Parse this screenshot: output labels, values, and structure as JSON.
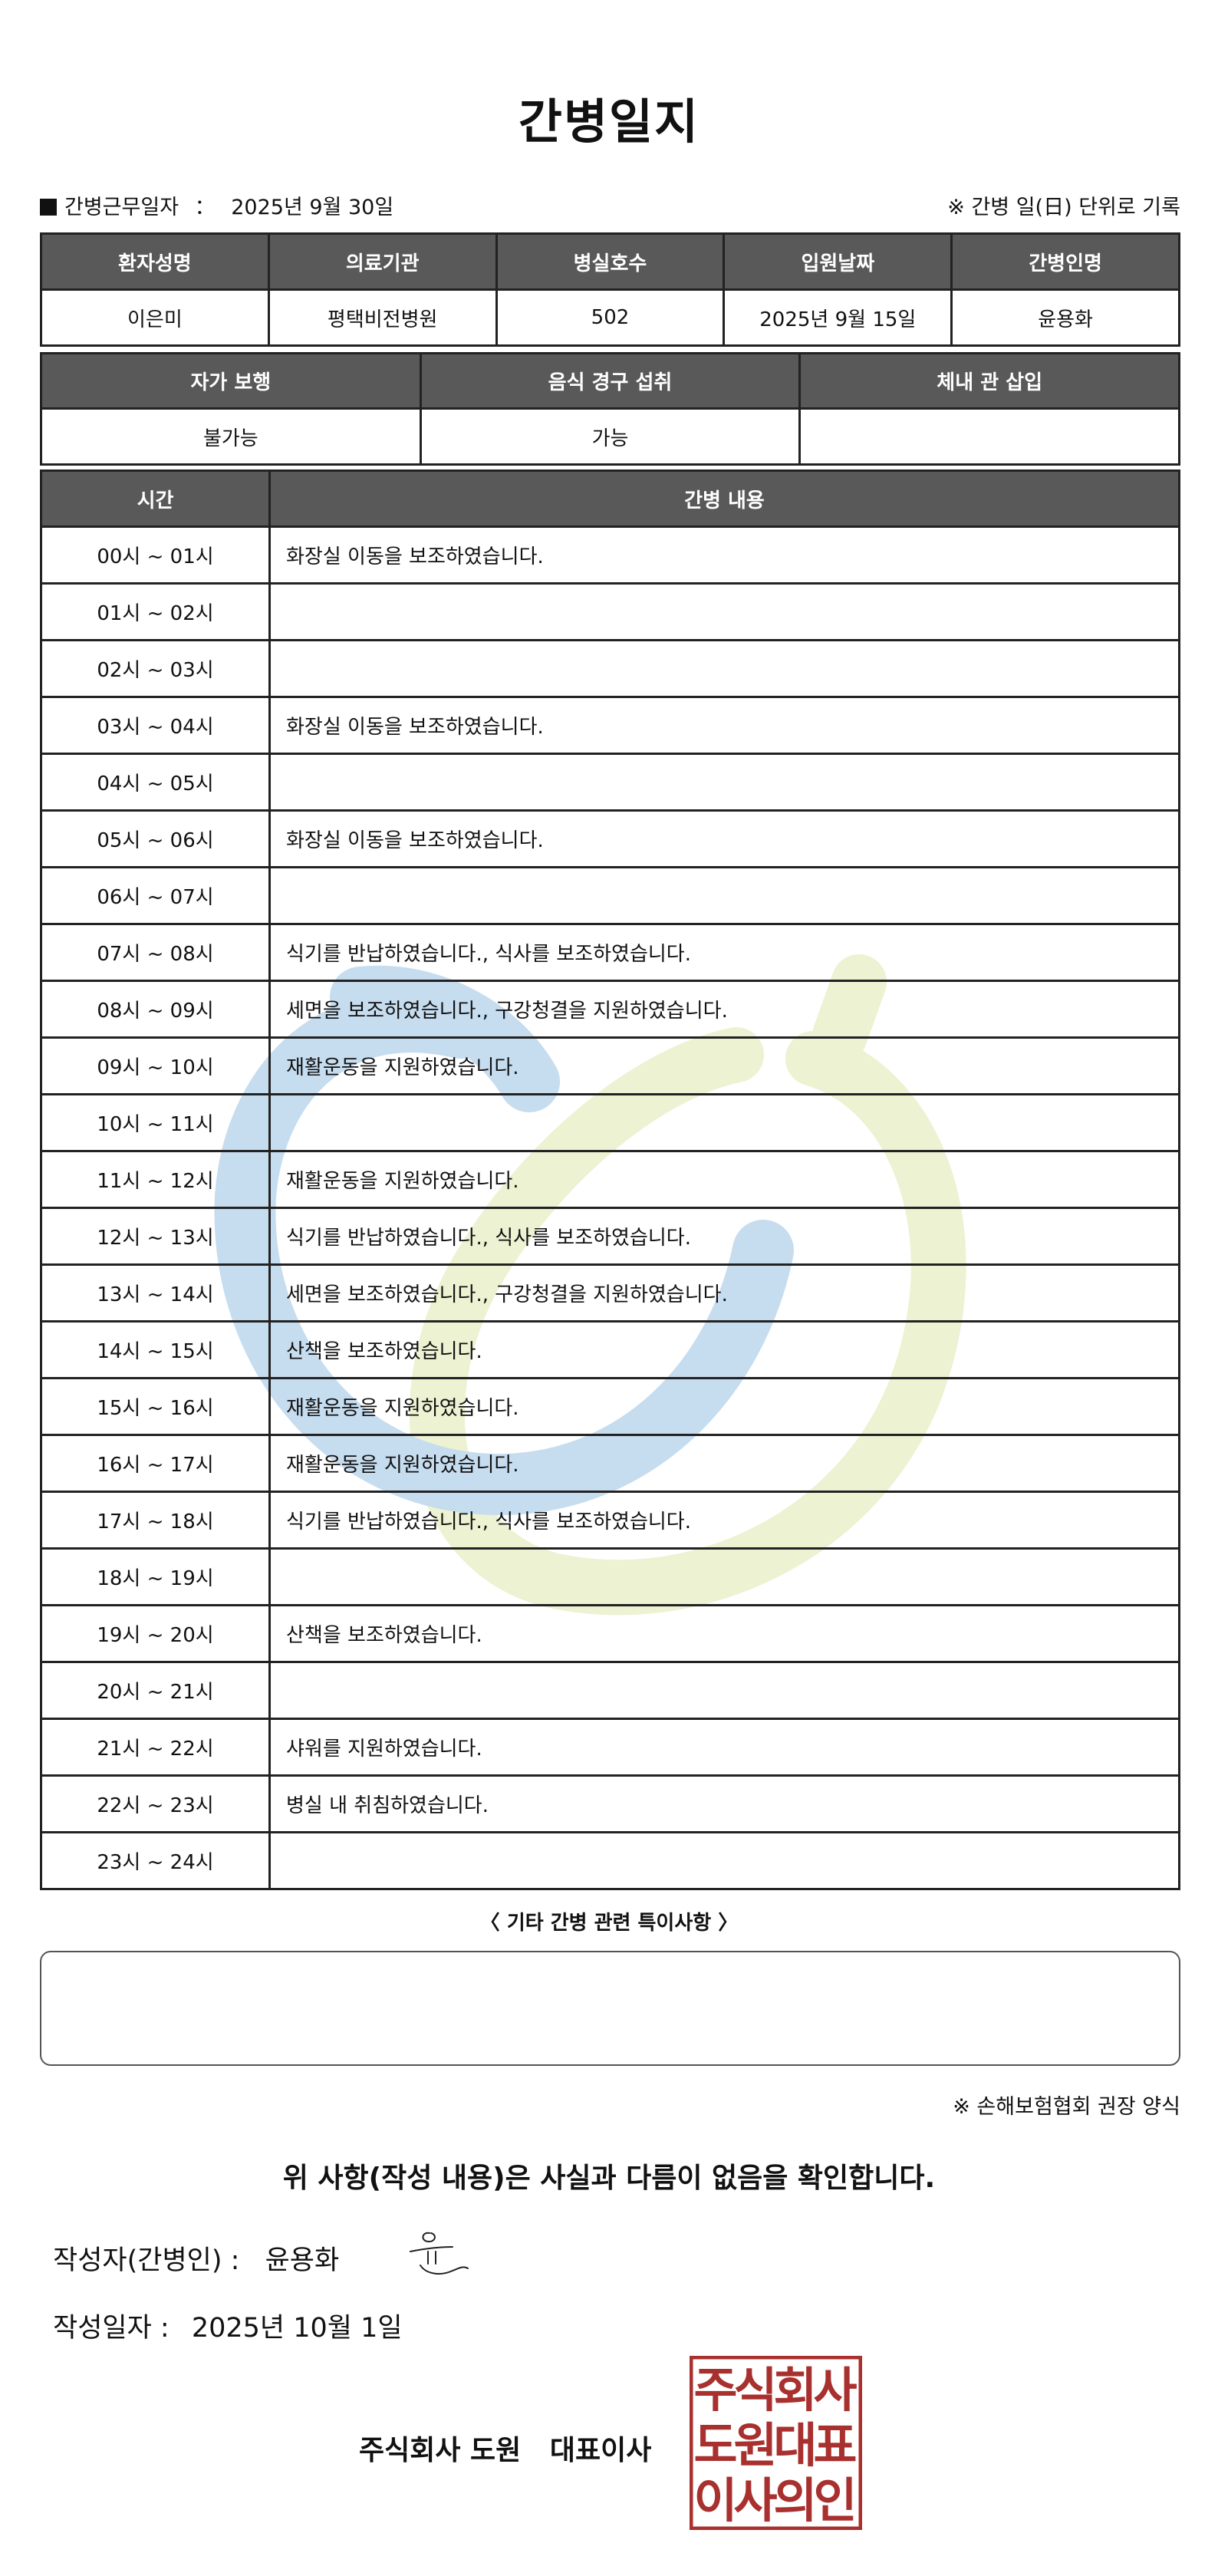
{
  "title": "간병일지",
  "work_date_label": "간병근무일자",
  "work_date_sep": "：",
  "work_date": "2025년 9월 30일",
  "unit_note": "※ 간병 일(日) 단위로 기록",
  "patient_table": {
    "headers": [
      "환자성명",
      "의료기관",
      "병실호수",
      "입원날짜",
      "간병인명"
    ],
    "values": [
      "이은미",
      "평택비전병원",
      "502",
      "2025년 9월 15일",
      "윤용화"
    ]
  },
  "status_table": {
    "headers": [
      "자가 보행",
      "음식 경구 섭취",
      "체내 관 삽입"
    ],
    "values": [
      "불가능",
      "가능",
      ""
    ]
  },
  "care_table": {
    "headers": [
      "시간",
      "간병 내용"
    ],
    "rows": [
      {
        "time": "00시 ~ 01시",
        "content": "화장실 이동을 보조하였습니다."
      },
      {
        "time": "01시 ~ 02시",
        "content": ""
      },
      {
        "time": "02시 ~ 03시",
        "content": ""
      },
      {
        "time": "03시 ~ 04시",
        "content": "화장실 이동을 보조하였습니다."
      },
      {
        "time": "04시 ~ 05시",
        "content": ""
      },
      {
        "time": "05시 ~ 06시",
        "content": "화장실 이동을 보조하였습니다."
      },
      {
        "time": "06시 ~ 07시",
        "content": ""
      },
      {
        "time": "07시 ~ 08시",
        "content": "식기를 반납하였습니다., 식사를 보조하였습니다."
      },
      {
        "time": "08시 ~ 09시",
        "content": "세면을 보조하였습니다., 구강청결을 지원하였습니다."
      },
      {
        "time": "09시 ~ 10시",
        "content": "재활운동을 지원하였습니다."
      },
      {
        "time": "10시 ~ 11시",
        "content": ""
      },
      {
        "time": "11시 ~ 12시",
        "content": "재활운동을 지원하였습니다."
      },
      {
        "time": "12시 ~ 13시",
        "content": "식기를 반납하였습니다., 식사를 보조하였습니다."
      },
      {
        "time": "13시 ~ 14시",
        "content": "세면을 보조하였습니다., 구강청결을 지원하였습니다."
      },
      {
        "time": "14시 ~ 15시",
        "content": "산책을 보조하였습니다."
      },
      {
        "time": "15시 ~ 16시",
        "content": "재활운동을 지원하였습니다."
      },
      {
        "time": "16시 ~ 17시",
        "content": "재활운동을 지원하였습니다."
      },
      {
        "time": "17시 ~ 18시",
        "content": "식기를 반납하였습니다., 식사를 보조하였습니다."
      },
      {
        "time": "18시 ~ 19시",
        "content": ""
      },
      {
        "time": "19시 ~ 20시",
        "content": "산책을 보조하였습니다."
      },
      {
        "time": "20시 ~ 21시",
        "content": ""
      },
      {
        "time": "21시 ~ 22시",
        "content": "샤워를 지원하였습니다."
      },
      {
        "time": "22시 ~ 23시",
        "content": "병실 내 취침하였습니다."
      },
      {
        "time": "23시 ~ 24시",
        "content": ""
      }
    ]
  },
  "notes_label": "〈 기타 간병 관련 특이사항 〉",
  "notes_value": "",
  "form_note": "※ 손해보험협회 권장 양식",
  "confirm_statement": "위 사항(작성 내용)은 사실과 다름이 없음을 확인합니다.",
  "writer_label": "작성자(간병인) :",
  "writer_name": "윤용화",
  "written_date_label": "작성일자 :",
  "written_date": "2025년 10월 1일",
  "company_line": "주식회사 도원   대표이사",
  "seal_text": "주식회사도원대표이사의인",
  "colors": {
    "header_bg": "#595959",
    "seal": "#a8302e",
    "watermark_blue": "#c6dcef",
    "watermark_green": "#edf2d2"
  }
}
